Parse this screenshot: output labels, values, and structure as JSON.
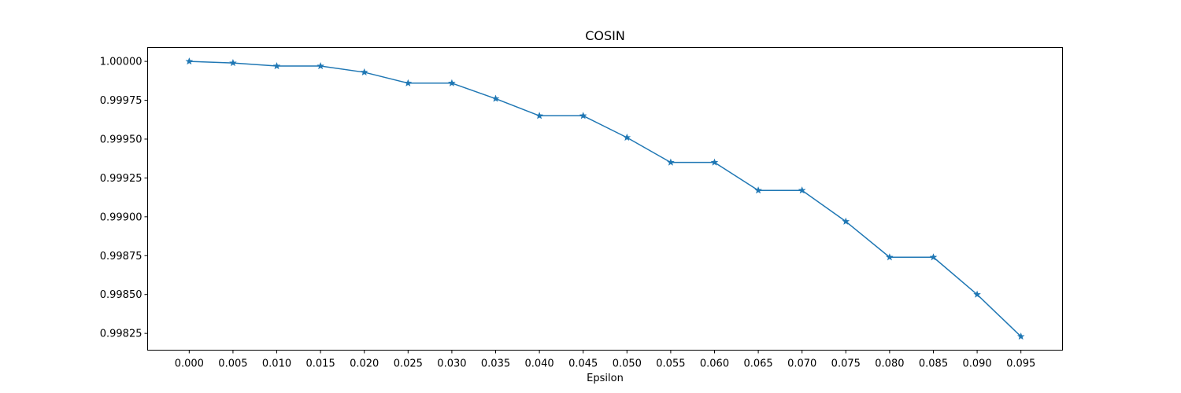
{
  "chart_data": {
    "type": "line",
    "title": "COSIN",
    "xlabel": "Epsilon",
    "ylabel": "",
    "x": [
      0.0,
      0.005,
      0.01,
      0.015,
      0.02,
      0.025,
      0.03,
      0.035,
      0.04,
      0.045,
      0.05,
      0.055,
      0.06,
      0.065,
      0.07,
      0.075,
      0.08,
      0.085,
      0.09,
      0.095
    ],
    "x_tick_labels": [
      "0.000",
      "0.005",
      "0.010",
      "0.015",
      "0.020",
      "0.025",
      "0.030",
      "0.035",
      "0.040",
      "0.045",
      "0.050",
      "0.055",
      "0.060",
      "0.065",
      "0.070",
      "0.075",
      "0.080",
      "0.085",
      "0.090",
      "0.095"
    ],
    "series": [
      {
        "values": [
          1.0,
          0.99999,
          0.99997,
          0.99997,
          0.99993,
          0.99986,
          0.99986,
          0.99976,
          0.99965,
          0.99965,
          0.99951,
          0.99935,
          0.99935,
          0.99917,
          0.99917,
          0.99897,
          0.99874,
          0.99874,
          0.9985,
          0.99823
        ],
        "color": "#1f77b4",
        "marker": "star"
      }
    ],
    "y_ticks": [
      0.99825,
      0.9985,
      0.99875,
      0.999,
      0.99925,
      0.9995,
      0.99975,
      1.0
    ],
    "y_tick_labels": [
      "0.99825",
      "0.99850",
      "0.99875",
      "0.99900",
      "0.99925",
      "0.99950",
      "0.99975",
      "1.00000"
    ],
    "xlim": [
      -0.00475,
      0.09975
    ],
    "ylim": [
      0.998142,
      1.000089
    ],
    "grid": false,
    "legend": false
  }
}
